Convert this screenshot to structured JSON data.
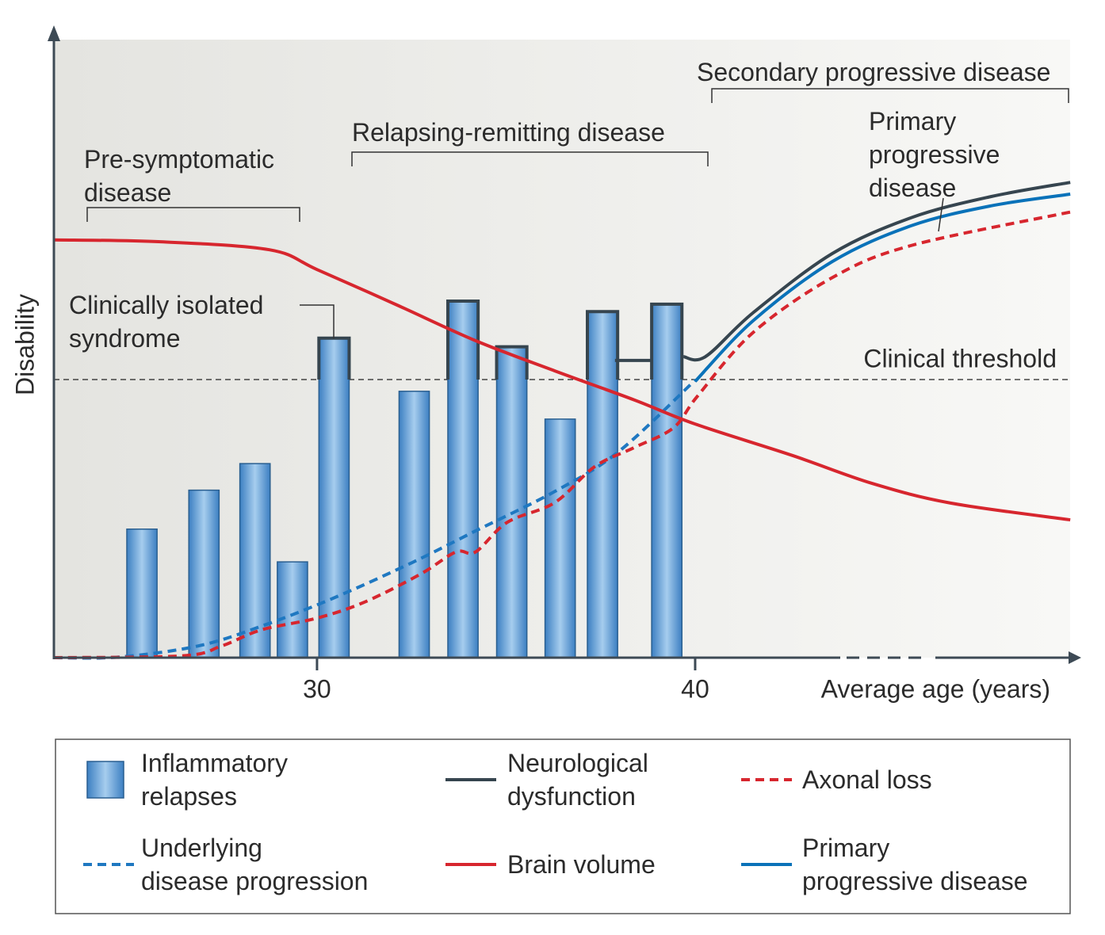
{
  "chart_data": {
    "type": "combo",
    "x_label": "Average age (years)",
    "y_label": "Disability",
    "xlim": [
      23,
      50
    ],
    "xticks": [
      30,
      40
    ],
    "ylim": [
      0,
      100
    ],
    "threshold": {
      "label": "Clinical threshold",
      "value": 45
    },
    "annotations": [
      "Pre-symptomatic\ndisease",
      "Relapsing-remitting disease",
      "Secondary progressive disease",
      "Primary\nprogressive\ndisease",
      "Clinically isolated\nsyndrome"
    ],
    "series": [
      {
        "name": "Inflammatory\nrelapses",
        "type": "bar",
        "color": "#4a8fd0",
        "x": [
          25.37,
          27.01,
          28.36,
          29.35,
          30.45,
          32.57,
          33.86,
          35.15,
          36.43,
          37.55,
          39.25
        ],
        "values": [
          20.8,
          27.1,
          31.4,
          15.5,
          51.7,
          43.1,
          57.7,
          50.3,
          38.6,
          56.0,
          57.2
        ]
      },
      {
        "name": "Neurological\ndysfunction",
        "type": "line",
        "color": "#36454f",
        "dash": false,
        "x": [
          37.88,
          38.83,
          39.25,
          39.69,
          40.27,
          41.53,
          43.63,
          45.72,
          47.82,
          49.92
        ],
        "values": [
          48.1,
          48.1,
          null,
          48.7,
          48.7,
          55.8,
          65.4,
          71.2,
          74.6,
          76.9
        ]
      },
      {
        "name": "Axonal loss",
        "type": "line",
        "color": "#d7262e",
        "dash": true,
        "x": [
          23.04,
          26.44,
          27.48,
          28.53,
          30,
          31.26,
          32.73,
          33.67,
          34.19,
          35.03,
          36.29,
          37.34,
          38.39,
          39.43,
          40.06,
          41.53,
          43.63,
          45.72,
          49.92
        ],
        "values": [
          0,
          0.3,
          1.9,
          4.5,
          6.4,
          9.0,
          13.5,
          17.1,
          17.1,
          21.9,
          25.1,
          30.9,
          34.0,
          37.2,
          42.3,
          52.6,
          61.5,
          66.7,
          72.1
        ]
      },
      {
        "name": "Underlying\ndisease progression",
        "type": "line",
        "color": "#1f78c1",
        "dash": true,
        "x": [
          23.04,
          24.76,
          26.86,
          28.53,
          30.42,
          32.52,
          34.19,
          36.29,
          37.97,
          40
        ],
        "values": [
          0,
          0.1,
          1.9,
          5.1,
          9.6,
          15.4,
          20.5,
          26.9,
          33.3,
          44.9
        ]
      },
      {
        "name": "Brain volume",
        "type": "line",
        "color": "#d7262e",
        "dash": false,
        "x": [
          23.04,
          25.81,
          28.74,
          30,
          32.1,
          34.19,
          36.29,
          38.39,
          40,
          42.58,
          44.68,
          46.77,
          49.92
        ],
        "values": [
          67.6,
          67.3,
          66.0,
          62.8,
          57.1,
          51.3,
          46.4,
          41.7,
          37.8,
          32.7,
          28.2,
          25.0,
          22.3
        ]
      },
      {
        "name": "Primary\nprogressive disease",
        "type": "line",
        "color": "#0a72b9",
        "dash": false,
        "x": [
          40,
          41.53,
          43.63,
          45.72,
          47.82,
          49.92
        ],
        "values": [
          44.7,
          54.5,
          64.1,
          69.9,
          73.1,
          75.0
        ]
      }
    ]
  }
}
